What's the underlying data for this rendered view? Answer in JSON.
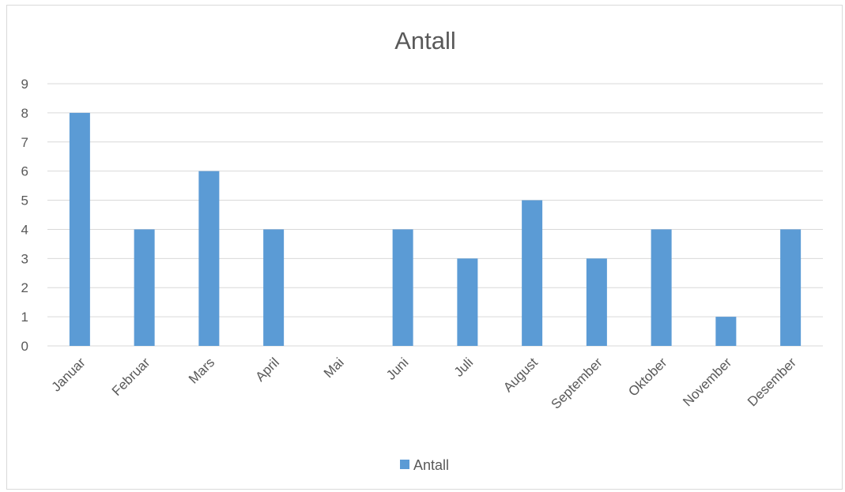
{
  "chart_data": {
    "type": "bar",
    "title": "Antall",
    "xlabel": "",
    "ylabel": "",
    "categories": [
      "Januar",
      "Februar",
      "Mars",
      "April",
      "Mai",
      "Juni",
      "Juli",
      "August",
      "September",
      "Oktober",
      "November",
      "Desember"
    ],
    "series": [
      {
        "name": "Antall",
        "values": [
          8,
          4,
          6,
          4,
          0,
          4,
          3,
          5,
          3,
          4,
          1,
          4
        ]
      }
    ],
    "ylim": [
      0,
      9
    ],
    "yticks": [
      0,
      1,
      2,
      3,
      4,
      5,
      6,
      7,
      8,
      9
    ],
    "grid": true,
    "legend": "bottom",
    "colors": {
      "bar": "#5b9bd5",
      "grid": "#d9d9d9",
      "text": "#595959"
    }
  }
}
